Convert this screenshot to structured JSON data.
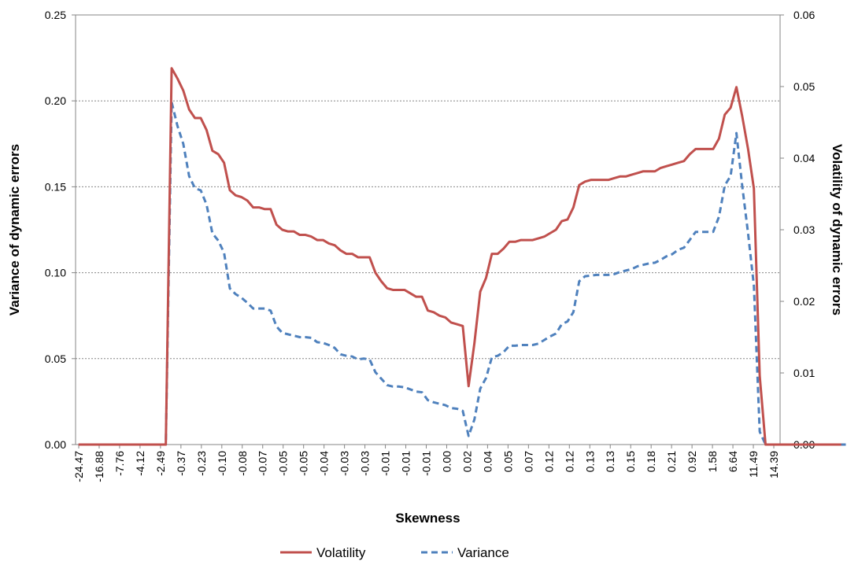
{
  "chart_data": {
    "type": "line",
    "title": "",
    "xlabel": "Skewness",
    "ylabel_left": "Variance of dynamic errors",
    "ylabel_right": "Volatility of dynamic errors",
    "left_axis": {
      "ylim": [
        0,
        0.25
      ],
      "ticks": [
        0,
        0.05,
        0.1,
        0.15,
        0.2,
        0.25
      ],
      "tick_labels": [
        "0.00",
        "0.05",
        "0.10",
        "0.15",
        "0.20",
        "0.25"
      ]
    },
    "right_axis": {
      "ylim": [
        0,
        0.06
      ],
      "ticks": [
        0,
        0.01,
        0.02,
        0.03,
        0.04,
        0.05,
        0.06
      ],
      "tick_labels": [
        "0.00",
        "0.01",
        "0.02",
        "0.03",
        "0.04",
        "0.05",
        "0.06"
      ]
    },
    "x_tick_labels": [
      "-24.47",
      "-16.88",
      "-7.76",
      "-4.12",
      "-2.49",
      "-0.37",
      "-0.23",
      "-0.10",
      "-0.08",
      "-0.07",
      "-0.05",
      "-0.05",
      "-0.04",
      "-0.03",
      "-0.03",
      "-0.01",
      "-0.01",
      "-0.01",
      "0.00",
      "0.02",
      "0.04",
      "0.05",
      "0.07",
      "0.12",
      "0.12",
      "0.13",
      "0.13",
      "0.15",
      "0.18",
      "0.21",
      "0.92",
      "1.58",
      "6.64",
      "11.49",
      "14.39"
    ],
    "x_count": 121,
    "grid": "horizontal major",
    "legend_position": "bottom",
    "colors": {
      "volatility": "#c0504d",
      "variance": "#4f81bd"
    },
    "series": [
      {
        "name": "Volatility",
        "axis": "left",
        "style": "solid",
        "values": [
          0,
          0,
          0,
          0,
          0,
          0,
          0,
          0,
          0,
          0,
          0,
          0,
          0,
          0,
          0,
          0,
          0.219,
          0.213,
          0.206,
          0.195,
          0.19,
          0.19,
          0.183,
          0.171,
          0.169,
          0.164,
          0.148,
          0.145,
          0.144,
          0.142,
          0.138,
          0.138,
          0.137,
          0.137,
          0.128,
          0.125,
          0.124,
          0.124,
          0.122,
          0.122,
          0.121,
          0.119,
          0.119,
          0.117,
          0.116,
          0.113,
          0.111,
          0.111,
          0.109,
          0.109,
          0.109,
          0.1,
          0.095,
          0.091,
          0.09,
          0.09,
          0.09,
          0.088,
          0.086,
          0.086,
          0.078,
          0.077,
          0.075,
          0.074,
          0.071,
          0.07,
          0.069,
          0.034,
          0.059,
          0.089,
          0.097,
          0.111,
          0.111,
          0.114,
          0.118,
          0.118,
          0.119,
          0.119,
          0.119,
          0.12,
          0.121,
          0.123,
          0.125,
          0.13,
          0.131,
          0.138,
          0.151,
          0.153,
          0.154,
          0.154,
          0.154,
          0.154,
          0.155,
          0.156,
          0.156,
          0.157,
          0.158,
          0.159,
          0.159,
          0.159,
          0.161,
          0.162,
          0.163,
          0.164,
          0.165,
          0.169,
          0.172,
          0.172,
          0.172,
          0.172,
          0.178,
          0.192,
          0.196,
          0.208,
          0.191,
          0.172,
          0.149,
          0.04,
          0,
          0,
          0,
          0,
          0,
          0,
          0,
          0,
          0,
          0,
          0,
          0,
          0,
          0
        ]
      },
      {
        "name": "Variance",
        "axis": "right",
        "style": "dashed",
        "values": [
          0,
          0,
          0,
          0,
          0,
          0,
          0,
          0,
          0,
          0,
          0,
          0,
          0,
          0,
          0,
          0,
          0.0478,
          0.0445,
          0.042,
          0.0375,
          0.0358,
          0.0355,
          0.0335,
          0.0295,
          0.0285,
          0.0268,
          0.0218,
          0.021,
          0.0205,
          0.0198,
          0.019,
          0.019,
          0.019,
          0.0187,
          0.0165,
          0.0156,
          0.0154,
          0.0152,
          0.015,
          0.015,
          0.0149,
          0.0143,
          0.0142,
          0.0139,
          0.0135,
          0.0126,
          0.0124,
          0.0123,
          0.0119,
          0.012,
          0.0119,
          0.0101,
          0.0092,
          0.0083,
          0.0081,
          0.0081,
          0.008,
          0.0077,
          0.0074,
          0.0073,
          0.0062,
          0.0059,
          0.0057,
          0.0055,
          0.0051,
          0.005,
          0.0047,
          0.0012,
          0.0035,
          0.0078,
          0.0093,
          0.0122,
          0.0124,
          0.0129,
          0.0138,
          0.0138,
          0.0139,
          0.0139,
          0.0139,
          0.0141,
          0.0146,
          0.0151,
          0.0155,
          0.0168,
          0.0172,
          0.0185,
          0.0228,
          0.0235,
          0.0236,
          0.0237,
          0.0237,
          0.0237,
          0.0238,
          0.0241,
          0.0243,
          0.0245,
          0.0249,
          0.0251,
          0.0253,
          0.0254,
          0.0258,
          0.0263,
          0.0266,
          0.0272,
          0.0275,
          0.0286,
          0.0297,
          0.0297,
          0.0297,
          0.0297,
          0.0318,
          0.0362,
          0.0375,
          0.0435,
          0.0361,
          0.0295,
          0.0222,
          0.0018,
          0,
          0,
          0,
          0,
          0,
          0,
          0,
          0,
          0,
          0,
          0,
          0,
          0,
          0,
          0
        ]
      }
    ]
  }
}
